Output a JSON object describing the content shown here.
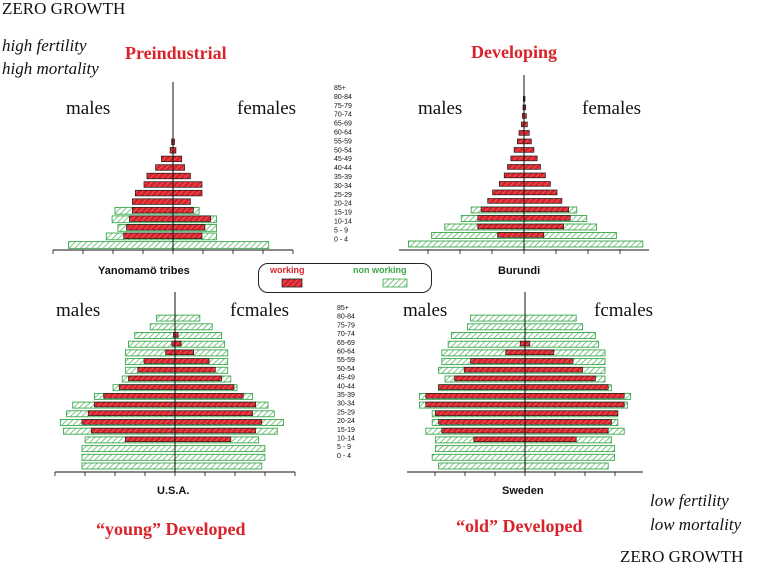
{
  "page": {
    "top_left": "ZERO GROWTH",
    "bottom_right": "ZERO GROWTH",
    "top_note": [
      "high fertility",
      "high mortality"
    ],
    "bottom_note": [
      "low fertility",
      "low mortality"
    ],
    "titles": {
      "tl": "Preindustrial",
      "tr": "Developing",
      "bl": "“young” Developed",
      "br": "“old” Developed"
    },
    "sex_labels": {
      "males": "males",
      "females": "females",
      "females_alt": "fcmales"
    },
    "legend": {
      "working": "working",
      "non_working": "non working"
    },
    "colors": {
      "working": "#d8232a",
      "non_working": "#3aa84a",
      "text_red": "#d8232a"
    }
  },
  "age_labels": [
    "85+",
    "80-84",
    "75-79",
    "70-74",
    "65-69",
    "60-64",
    "55-59",
    "50-54",
    "45-49",
    "40-44",
    "35-39",
    "30-34",
    "25-29",
    "20-24",
    "15-19",
    "10-14",
    "5 - 9",
    "0 - 4"
  ],
  "chart_data": [
    {
      "type": "bar",
      "layout": "population-pyramid",
      "title": "Yanomamö tribes",
      "categories": [
        "0-4",
        "5-9",
        "10-14",
        "15-19",
        "20-24",
        "25-29",
        "30-34",
        "35-39",
        "40-44",
        "45-49",
        "50-54",
        "55-59",
        "60-64"
      ],
      "series": [
        {
          "name": "males working",
          "values": [
            0,
            1.7,
            1.6,
            1.5,
            1.4,
            1.4,
            1.3,
            1.0,
            0.9,
            0.6,
            0.4,
            0.1,
            0.05
          ]
        },
        {
          "name": "males non working",
          "values": [
            3.6,
            2.3,
            1.9,
            2.1,
            2.0,
            0,
            0,
            0,
            0,
            0,
            0,
            0,
            0
          ]
        },
        {
          "name": "females working",
          "values": [
            0,
            1.0,
            1.1,
            1.3,
            0.7,
            0.6,
            1.0,
            1.0,
            0.6,
            0.4,
            0.3,
            0.1,
            0.05
          ]
        },
        {
          "name": "females non working",
          "values": [
            3.3,
            1.5,
            1.5,
            1.5,
            0.9,
            0,
            0,
            0,
            0,
            0,
            0,
            0,
            0
          ]
        }
      ]
    },
    {
      "type": "bar",
      "layout": "population-pyramid",
      "title": "Burundi",
      "categories": [
        "0-4",
        "5-9",
        "10-14",
        "15-19",
        "20-24",
        "25-29",
        "30-34",
        "35-39",
        "40-44",
        "45-49",
        "50-54",
        "55-59",
        "60-64",
        "65-69",
        "70-74",
        "75-79",
        "80-84",
        "85+"
      ],
      "series": [
        {
          "name": "males working",
          "values": [
            0,
            0.8,
            1.4,
            1.4,
            1.3,
            1.1,
            0.95,
            0.75,
            0.6,
            0.5,
            0.4,
            0.3,
            0.2,
            0.15,
            0.08,
            0.05,
            0.03,
            0.02
          ]
        },
        {
          "name": "males non working",
          "values": [
            3.5,
            2.8,
            2.4,
            1.9,
            1.6,
            0,
            0,
            0,
            0,
            0,
            0,
            0,
            0,
            0,
            0,
            0,
            0,
            0
          ]
        },
        {
          "name": "females working",
          "values": [
            0,
            0.6,
            1.2,
            1.4,
            1.35,
            1.15,
            1.0,
            0.8,
            0.65,
            0.5,
            0.4,
            0.3,
            0.22,
            0.16,
            0.1,
            0.07,
            0.05,
            0.03
          ]
        },
        {
          "name": "females non working",
          "values": [
            3.6,
            2.8,
            2.2,
            1.9,
            1.6,
            0,
            0,
            0,
            0,
            0,
            0,
            0,
            0,
            0,
            0,
            0,
            0,
            0
          ]
        }
      ]
    },
    {
      "type": "bar",
      "layout": "population-pyramid",
      "title": "U.S.A.",
      "categories": [
        "0-4",
        "5-9",
        "10-14",
        "15-19",
        "20-24",
        "25-29",
        "30-34",
        "35-39",
        "40-44",
        "45-49",
        "50-54",
        "55-59",
        "60-64",
        "65-69",
        "70-74",
        "75-79",
        "80-84",
        "85+"
      ],
      "series": [
        {
          "name": "males working",
          "values": [
            0,
            0,
            0,
            1.6,
            2.7,
            3.0,
            2.8,
            2.6,
            2.3,
            1.8,
            1.5,
            1.2,
            1.0,
            0.3,
            0.1,
            0.05,
            0,
            0
          ]
        },
        {
          "name": "males non working",
          "values": [
            3.0,
            3.0,
            3.0,
            2.9,
            3.6,
            3.7,
            3.5,
            3.3,
            2.6,
            2.0,
            1.7,
            1.6,
            1.6,
            1.6,
            1.5,
            1.3,
            0.8,
            0.6
          ]
        },
        {
          "name": "females working",
          "values": [
            0,
            0,
            0,
            1.8,
            2.6,
            2.8,
            2.5,
            2.6,
            2.2,
            1.9,
            1.5,
            1.3,
            1.1,
            0.6,
            0.2,
            0.1,
            0,
            0
          ]
        },
        {
          "name": "females non working",
          "values": [
            2.8,
            2.9,
            2.9,
            2.7,
            3.3,
            3.5,
            3.2,
            3.0,
            2.5,
            2.0,
            1.8,
            1.7,
            1.7,
            1.7,
            1.6,
            1.5,
            1.2,
            0.8
          ]
        }
      ]
    },
    {
      "type": "bar",
      "layout": "population-pyramid",
      "title": "Sweden",
      "categories": [
        "0-4",
        "5-9",
        "10-14",
        "15-19",
        "20-24",
        "25-29",
        "30-34",
        "35-39",
        "40-44",
        "45-49",
        "50-54",
        "55-59",
        "60-64",
        "65-69",
        "70-74",
        "75-79",
        "80-84",
        "85+"
      ],
      "series": [
        {
          "name": "males working",
          "values": [
            0,
            0,
            0,
            1.6,
            2.6,
            2.7,
            2.8,
            3.1,
            3.1,
            2.7,
            2.2,
            1.9,
            1.7,
            0.6,
            0.15,
            0,
            0,
            0
          ]
        },
        {
          "name": "males non working",
          "values": [
            2.7,
            2.9,
            2.8,
            2.8,
            3.1,
            2.9,
            2.9,
            3.3,
            3.3,
            2.7,
            2.5,
            2.7,
            2.6,
            2.6,
            2.4,
            2.3,
            1.8,
            1.7
          ]
        },
        {
          "name": "females working",
          "values": [
            0,
            0,
            0,
            1.6,
            2.6,
            2.7,
            2.9,
            3.1,
            3.1,
            2.6,
            2.2,
            1.8,
            1.5,
            0.9,
            0.15,
            0,
            0,
            0
          ]
        },
        {
          "name": "females non working",
          "values": [
            2.6,
            2.8,
            2.8,
            2.7,
            3.1,
            2.9,
            2.9,
            3.2,
            3.3,
            2.7,
            2.5,
            2.5,
            2.5,
            2.5,
            2.3,
            2.2,
            1.8,
            1.6
          ]
        }
      ]
    }
  ]
}
